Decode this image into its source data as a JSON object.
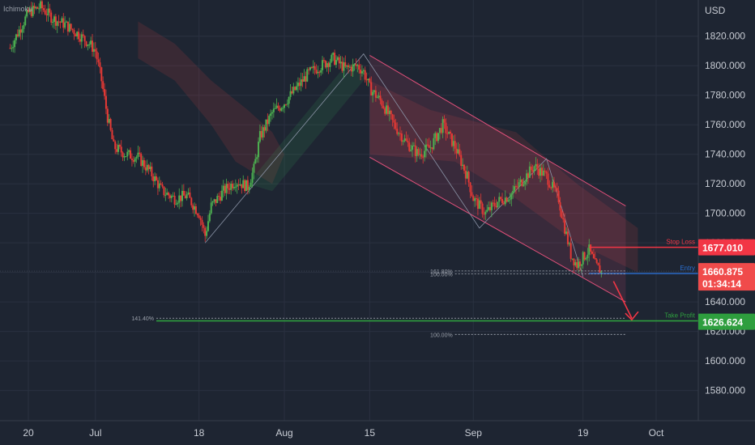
{
  "indicator_label": "Ichimoku",
  "currency": "USD",
  "colors": {
    "background": "#1e2532",
    "grid": "#2a3140",
    "axis_text": "#c8ccd4",
    "candle_up": "#4caf50",
    "candle_down": "#e53935",
    "channel": "#e0507a",
    "stop_loss": "#f23645",
    "take_profit": "#2e9e3e",
    "current": "#f04b4b",
    "entry_line": "#2a6fd1"
  },
  "chart_data": {
    "type": "candlestick",
    "title": "",
    "ylim": [
      1565,
      1850
    ],
    "y_ticks": [
      1580,
      1600,
      1620,
      1640,
      1660,
      1680,
      1700,
      1720,
      1740,
      1760,
      1780,
      1800,
      1820
    ],
    "y_tick_labels": [
      "1580.000",
      "1600.000",
      "1620.000",
      "1640.000",
      "1660.000",
      "1680.000",
      "1700.000",
      "1720.000",
      "1740.000",
      "1760.000",
      "1780.000",
      "1800.000",
      "1820.000"
    ],
    "x_ticks": [
      {
        "label": "20",
        "day": 0
      },
      {
        "label": "Jul",
        "day": 11
      },
      {
        "label": "18",
        "day": 28
      },
      {
        "label": "Aug",
        "day": 42
      },
      {
        "label": "15",
        "day": 56
      },
      {
        "label": "Sep",
        "day": 73
      },
      {
        "label": "19",
        "day": 91
      },
      {
        "label": "Oct",
        "day": 103
      }
    ],
    "close_path": [
      [
        -3,
        1812
      ],
      [
        -1,
        1828
      ],
      [
        0,
        1836
      ],
      [
        2,
        1840
      ],
      [
        4,
        1832
      ],
      [
        6,
        1828
      ],
      [
        8,
        1822
      ],
      [
        10,
        1815
      ],
      [
        11,
        1810
      ],
      [
        12,
        1790
      ],
      [
        13,
        1765
      ],
      [
        14,
        1745
      ],
      [
        16,
        1740
      ],
      [
        18,
        1738
      ],
      [
        20,
        1728
      ],
      [
        22,
        1715
      ],
      [
        24,
        1710
      ],
      [
        26,
        1712
      ],
      [
        28,
        1700
      ],
      [
        29,
        1685
      ],
      [
        30,
        1705
      ],
      [
        32,
        1715
      ],
      [
        34,
        1722
      ],
      [
        36,
        1718
      ],
      [
        37,
        1730
      ],
      [
        38,
        1752
      ],
      [
        40,
        1768
      ],
      [
        42,
        1775
      ],
      [
        44,
        1785
      ],
      [
        46,
        1795
      ],
      [
        48,
        1800
      ],
      [
        50,
        1805
      ],
      [
        52,
        1798
      ],
      [
        54,
        1800
      ],
      [
        55,
        1796
      ],
      [
        56,
        1785
      ],
      [
        58,
        1775
      ],
      [
        60,
        1760
      ],
      [
        62,
        1748
      ],
      [
        64,
        1740
      ],
      [
        66,
        1745
      ],
      [
        68,
        1760
      ],
      [
        70,
        1745
      ],
      [
        72,
        1725
      ],
      [
        73,
        1710
      ],
      [
        75,
        1700
      ],
      [
        77,
        1708
      ],
      [
        79,
        1712
      ],
      [
        81,
        1722
      ],
      [
        83,
        1732
      ],
      [
        85,
        1725
      ],
      [
        87,
        1710
      ],
      [
        88,
        1690
      ],
      [
        89,
        1672
      ],
      [
        90,
        1665
      ],
      [
        91,
        1670
      ],
      [
        92,
        1675
      ],
      [
        93,
        1665
      ],
      [
        94,
        1660
      ]
    ],
    "current_price": 1660.875,
    "countdown": "01:34:14",
    "stop_loss": {
      "label": "Stop Loss",
      "price": 1677.01
    },
    "take_profit": {
      "label": "Take Profit",
      "price": 1626.624
    },
    "entry_label": "Entry",
    "fib_levels": [
      {
        "label": "161.80%",
        "price": 1661
      },
      {
        "label": "100.00%",
        "price": 1659
      },
      {
        "label": "141.40%",
        "price": 1629
      },
      {
        "label": "100.00%",
        "price": 1618
      }
    ],
    "channel": {
      "upper": [
        [
          56,
          1807
        ],
        [
          98,
          1705
        ]
      ],
      "lower": [
        [
          56,
          1738
        ],
        [
          98,
          1640
        ]
      ]
    },
    "zigzag": [
      [
        29,
        1680
      ],
      [
        55,
        1808
      ],
      [
        74,
        1690
      ],
      [
        85,
        1737
      ],
      [
        91,
        1657
      ]
    ],
    "projection": [
      [
        96,
        1654
      ],
      [
        99,
        1629
      ]
    ],
    "cloud_bear": [
      [
        [
          18,
          1830
        ],
        [
          24,
          1815
        ],
        [
          30,
          1790
        ],
        [
          36,
          1770
        ],
        [
          40,
          1755
        ],
        [
          42,
          1740
        ],
        [
          40,
          1720
        ],
        [
          34,
          1735
        ],
        [
          30,
          1760
        ],
        [
          24,
          1790
        ],
        [
          18,
          1805
        ]
      ],
      [
        [
          56,
          1790
        ],
        [
          66,
          1770
        ],
        [
          80,
          1755
        ],
        [
          90,
          1720
        ],
        [
          100,
          1690
        ],
        [
          100,
          1660
        ],
        [
          90,
          1680
        ],
        [
          80,
          1710
        ],
        [
          70,
          1735
        ],
        [
          56,
          1740
        ]
      ]
    ],
    "cloud_bull": [
      [
        [
          36,
          1720
        ],
        [
          40,
          1740
        ],
        [
          46,
          1770
        ],
        [
          52,
          1800
        ],
        [
          56,
          1795
        ],
        [
          52,
          1775
        ],
        [
          46,
          1745
        ],
        [
          40,
          1715
        ]
      ]
    ],
    "day_range": [
      -3,
      108
    ]
  }
}
